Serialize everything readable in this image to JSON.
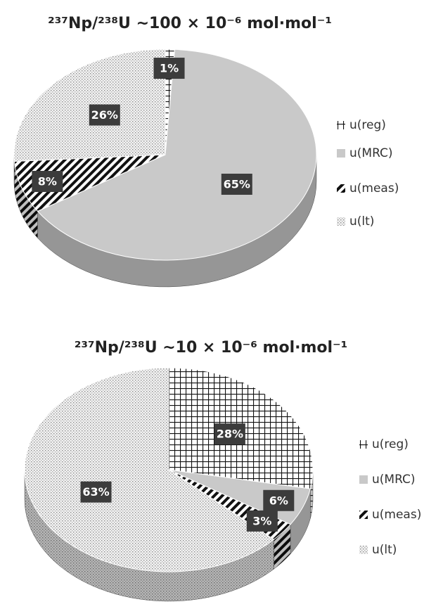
{
  "chart_data": [
    {
      "type": "pie",
      "title": "²³⁷Np/²³⁸U  ~100 × 10⁻⁶ mol·mol⁻¹",
      "categories": [
        "u(reg)",
        "u(MRC)",
        "u(meas)",
        "u(lt)"
      ],
      "values": [
        1,
        65,
        8,
        26
      ],
      "value_labels": [
        "1%",
        "65%",
        "8%",
        "26%"
      ]
    },
    {
      "type": "pie",
      "title": "²³⁷Np/²³⁸U ~10 × 10⁻⁶ mol·mol⁻¹",
      "categories": [
        "u(reg)",
        "u(MRC)",
        "u(meas)",
        "u(lt)"
      ],
      "values": [
        28,
        6,
        3,
        63
      ],
      "value_labels": [
        "28%",
        "6%",
        "3%",
        "63%"
      ]
    }
  ]
}
